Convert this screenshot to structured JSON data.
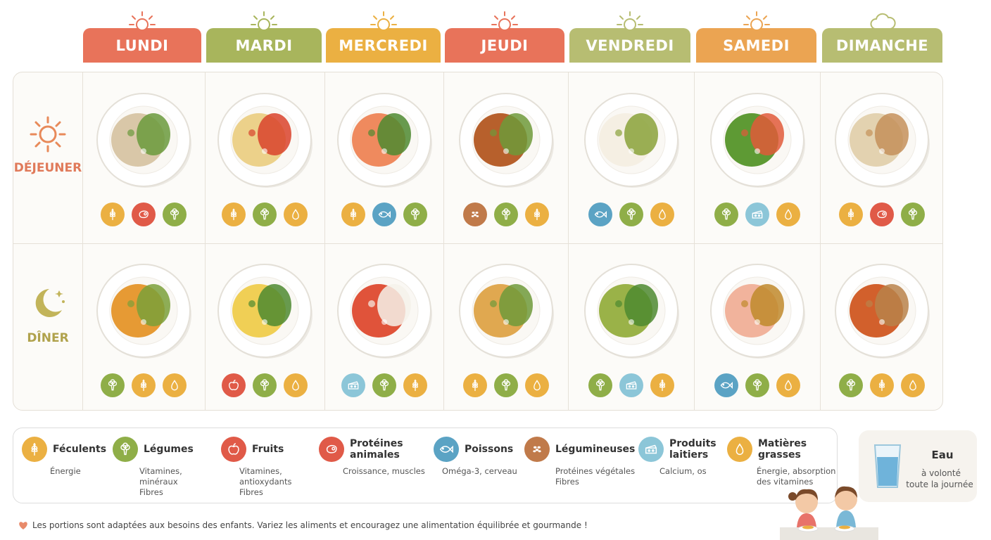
{
  "days": [
    {
      "label": "LUNDI",
      "color": "#e8735a",
      "weather": "sun"
    },
    {
      "label": "MARDI",
      "color": "#a8b55c",
      "weather": "sun"
    },
    {
      "label": "MERCREDI",
      "color": "#ebb042",
      "weather": "sun"
    },
    {
      "label": "JEUDI",
      "color": "#e8735a",
      "weather": "sun"
    },
    {
      "label": "VENDREDI",
      "color": "#b7bd72",
      "weather": "sun"
    },
    {
      "label": "SAMEDI",
      "color": "#eba452",
      "weather": "sun"
    },
    {
      "label": "DIMANCHE",
      "color": "#b7bd72",
      "weather": "cloud"
    }
  ],
  "meals": [
    {
      "label": "DÉJEUNER",
      "color": "#e07a5a",
      "icon": "sun-icon"
    },
    {
      "label": "DÎNER",
      "color": "#b0a24c",
      "icon": "moon-icon"
    }
  ],
  "dishes": {
    "lunch": [
      {
        "name": "pasta-green-beans",
        "colors": [
          "#d9c7a8",
          "#6a9a3c"
        ],
        "tags": [
          "feculents",
          "proteines",
          "legumes"
        ]
      },
      {
        "name": "pasta-tomato-sauce",
        "colors": [
          "#ecd18a",
          "#d9432c"
        ],
        "tags": [
          "feculents",
          "legumes",
          "matieres"
        ]
      },
      {
        "name": "salmon-rice-broccoli",
        "colors": [
          "#ef8a5e",
          "#4d8a30"
        ],
        "tags": [
          "feculents",
          "poissons",
          "legumes"
        ]
      },
      {
        "name": "lentil-stew-bread",
        "colors": [
          "#b7602c",
          "#6e9a3a"
        ],
        "tags": [
          "legumineuses",
          "legumes",
          "feculents"
        ]
      },
      {
        "name": "fish-zucchini",
        "colors": [
          "#f5efe3",
          "#8aa23a"
        ],
        "tags": [
          "poissons",
          "legumes",
          "matieres"
        ]
      },
      {
        "name": "mixed-salad-feta",
        "colors": [
          "#5e9a34",
          "#e05a3a"
        ],
        "tags": [
          "legumes",
          "laitiers",
          "matieres"
        ]
      },
      {
        "name": "risotto-vegetables",
        "colors": [
          "#e3d2b0",
          "#c4915a"
        ],
        "tags": [
          "feculents",
          "proteines",
          "legumes"
        ]
      }
    ],
    "dinner": [
      {
        "name": "vegetable-soup-bread",
        "colors": [
          "#e69a34",
          "#7aa03a"
        ],
        "tags": [
          "legumes",
          "feculents",
          "matieres"
        ]
      },
      {
        "name": "omelette-salad",
        "colors": [
          "#f0cf55",
          "#4d8a30"
        ],
        "tags": [
          "fruits",
          "legumes",
          "matieres"
        ]
      },
      {
        "name": "tomato-mozzarella",
        "colors": [
          "#e0533a",
          "#f5f2ea"
        ],
        "tags": [
          "laitiers",
          "legumes",
          "feculents"
        ]
      },
      {
        "name": "vegetable-rice",
        "colors": [
          "#e0a850",
          "#6e9a3a"
        ],
        "tags": [
          "feculents",
          "legumes",
          "matieres"
        ]
      },
      {
        "name": "green-soup-croutons",
        "colors": [
          "#9ab248",
          "#4d8a30"
        ],
        "tags": [
          "legumes",
          "laitiers",
          "feculents"
        ]
      },
      {
        "name": "fish-potatoes-broccoli",
        "colors": [
          "#f1b39c",
          "#c08a2c"
        ],
        "tags": [
          "poissons",
          "legumes",
          "matieres"
        ]
      },
      {
        "name": "bean-tomato-soup",
        "colors": [
          "#d2602c",
          "#b9834a"
        ],
        "tags": [
          "legumes",
          "feculents",
          "matieres"
        ]
      }
    ]
  },
  "categories": {
    "feculents": {
      "color": "#ebb042",
      "icon": "wheat-icon"
    },
    "legumes": {
      "color": "#8fae48",
      "icon": "broccoli-icon"
    },
    "fruits": {
      "color": "#e05a48",
      "icon": "apple-icon"
    },
    "proteines": {
      "color": "#e05a48",
      "icon": "meat-icon"
    },
    "poissons": {
      "color": "#5ba3c4",
      "icon": "fish-icon"
    },
    "legumineuses": {
      "color": "#c07a4a",
      "icon": "beans-icon"
    },
    "laitiers": {
      "color": "#8cc6d8",
      "icon": "cheese-icon"
    },
    "matieres": {
      "color": "#ebb042",
      "icon": "drop-icon"
    }
  },
  "legend": [
    {
      "key": "feculents",
      "title": "Féculents",
      "desc": [
        "Énergie"
      ]
    },
    {
      "key": "legumes",
      "title": "Légumes",
      "desc": [
        "Vitamines,",
        "minéraux",
        "Fibres"
      ]
    },
    {
      "key": "fruits",
      "title": "Fruits",
      "desc": [
        "Vitamines,",
        "antioxydants",
        "Fibres"
      ]
    },
    {
      "key": "proteines",
      "title": "Protéines animales",
      "desc": [
        "Croissance, muscles"
      ]
    },
    {
      "key": "poissons",
      "title": "Poissons",
      "desc": [
        "Oméga-3, cerveau"
      ]
    },
    {
      "key": "legumineuses",
      "title": "Légumineuses",
      "desc": [
        "Protéines végétales",
        "Fibres"
      ]
    },
    {
      "key": "laitiers",
      "title": "Produits laitiers",
      "desc": [
        "Calcium, os"
      ]
    },
    {
      "key": "matieres",
      "title": "Matières grasses",
      "desc": [
        "Énergie, absorption",
        "des vitamines"
      ]
    }
  ],
  "water": {
    "title": "Eau",
    "desc": [
      "à volonté",
      "toute la journée"
    ],
    "icon": "water-glass-icon"
  },
  "footer": {
    "text": "Les portions sont adaptées aux besoins des enfants. Variez les aliments et encouragez une alimentation équilibrée et gourmande !",
    "icon": "heart-icon"
  }
}
